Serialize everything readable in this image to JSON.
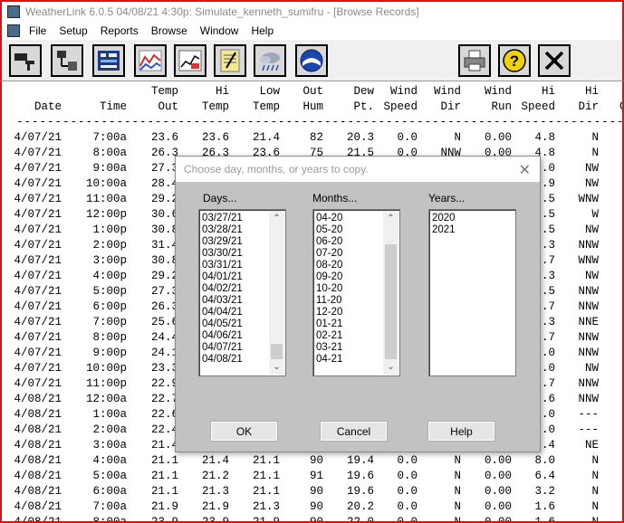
{
  "window": {
    "title": "WeatherLink 6.0.5  04/08/21  4:30p: Simulate_kenneth_sumifru - [Browse Records]"
  },
  "menu": [
    "File",
    "Setup",
    "Reports",
    "Browse",
    "Window",
    "Help"
  ],
  "toolbar_icons": [
    "import-icon",
    "connect-icon",
    "bulletin-icon",
    "strip-chart-icon",
    "graph-icon",
    "notes-icon",
    "weather-icon",
    "noaa-icon",
    "print-icon",
    "help-icon",
    "close-icon"
  ],
  "grid": {
    "headers": [
      {
        "line1": "",
        "line2": "Date"
      },
      {
        "line1": "",
        "line2": "Time"
      },
      {
        "line1": "Temp",
        "line2": "Out"
      },
      {
        "line1": "Hi",
        "line2": "Temp"
      },
      {
        "line1": "Low",
        "line2": "Temp"
      },
      {
        "line1": "Out",
        "line2": "Hum"
      },
      {
        "line1": "Dew",
        "line2": "Pt."
      },
      {
        "line1": "Wind",
        "line2": "Speed"
      },
      {
        "line1": "Wind",
        "line2": "Dir"
      },
      {
        "line1": "Wind",
        "line2": "Run"
      },
      {
        "line1": "Hi",
        "line2": "Speed"
      },
      {
        "line1": "Hi",
        "line2": "Dir"
      },
      {
        "line1": "W",
        "line2": "Ch"
      }
    ],
    "dashes": "--------------------------------------------------------------------------------------------",
    "rows": [
      [
        "4/07/21",
        "7:00a",
        "23.6",
        "23.6",
        "21.4",
        "82",
        "20.3",
        "0.0",
        "N",
        "0.00",
        "4.8",
        "N",
        "2"
      ],
      [
        "4/07/21",
        "8:00a",
        "26.3",
        "26.3",
        "23.6",
        "75",
        "21.5",
        "0.0",
        "NNW",
        "0.00",
        "4.8",
        "N",
        "2"
      ],
      [
        "4/07/21",
        "9:00a",
        "27.3",
        "",
        "",
        "",
        "",
        "",
        "",
        "",
        ".0",
        "NW",
        "2"
      ],
      [
        "4/07/21",
        "10:00a",
        "28.4",
        "",
        "",
        "",
        "",
        "",
        "",
        "",
        ".9",
        "NW",
        "2"
      ],
      [
        "4/07/21",
        "11:00a",
        "29.2",
        "",
        "",
        "",
        "",
        "",
        "",
        "",
        ".5",
        "WNW",
        "2"
      ],
      [
        "4/07/21",
        "12:00p",
        "30.6",
        "",
        "",
        "",
        "",
        "",
        "",
        "",
        ".5",
        "W",
        "3"
      ],
      [
        "4/07/21",
        "1:00p",
        "30.8",
        "",
        "",
        "",
        "",
        "",
        "",
        "",
        ".5",
        "NW",
        "3"
      ],
      [
        "4/07/21",
        "2:00p",
        "31.4",
        "",
        "",
        "",
        "",
        "",
        "",
        "",
        ".3",
        "NNW",
        "3"
      ],
      [
        "4/07/21",
        "3:00p",
        "30.8",
        "",
        "",
        "",
        "",
        "",
        "",
        "",
        ".7",
        "WNW",
        "3"
      ],
      [
        "4/07/21",
        "4:00p",
        "29.2",
        "",
        "",
        "",
        "",
        "",
        "",
        "",
        ".3",
        "NW",
        "2"
      ],
      [
        "4/07/21",
        "5:00p",
        "27.3",
        "",
        "",
        "",
        "",
        "",
        "",
        "",
        ".5",
        "NNW",
        "2"
      ],
      [
        "4/07/21",
        "6:00p",
        "26.3",
        "",
        "",
        "",
        "",
        "",
        "",
        "",
        ".7",
        "NNW",
        "2"
      ],
      [
        "4/07/21",
        "7:00p",
        "25.6",
        "",
        "",
        "",
        "",
        "",
        "",
        "",
        ".3",
        "NNE",
        "2"
      ],
      [
        "4/07/21",
        "8:00p",
        "24.4",
        "",
        "",
        "",
        "",
        "",
        "",
        "",
        ".7",
        "NNW",
        "2"
      ],
      [
        "4/07/21",
        "9:00p",
        "24.1",
        "",
        "",
        "",
        "",
        "",
        "",
        "",
        ".0",
        "NNW",
        "2"
      ],
      [
        "4/07/21",
        "10:00p",
        "23.3",
        "",
        "",
        "",
        "",
        "",
        "",
        "",
        ".0",
        "NW",
        "2"
      ],
      [
        "4/07/21",
        "11:00p",
        "22.9",
        "",
        "",
        "",
        "",
        "",
        "",
        "",
        ".7",
        "NNW",
        "2"
      ],
      [
        "4/08/21",
        "12:00a",
        "22.7",
        "",
        "",
        "",
        "",
        "",
        "",
        "",
        ".6",
        "NNW",
        "2"
      ],
      [
        "4/08/21",
        "1:00a",
        "22.6",
        "",
        "",
        "",
        "",
        "",
        "",
        "",
        ".0",
        "---",
        "2"
      ],
      [
        "4/08/21",
        "2:00a",
        "22.4",
        "",
        "",
        "",
        "",
        "",
        "",
        "",
        ".0",
        "---",
        "2"
      ],
      [
        "4/08/21",
        "3:00a",
        "21.4",
        "",
        "",
        "",
        "",
        "",
        "",
        "",
        ".4",
        "NE",
        "2"
      ],
      [
        "4/08/21",
        "4:00a",
        "21.1",
        "21.4",
        "21.1",
        "90",
        "19.4",
        "0.0",
        "N",
        "0.00",
        "8.0",
        "N",
        "2"
      ],
      [
        "4/08/21",
        "5:00a",
        "21.1",
        "21.2",
        "21.1",
        "91",
        "19.6",
        "0.0",
        "N",
        "0.00",
        "6.4",
        "N",
        "2"
      ],
      [
        "4/08/21",
        "6:00a",
        "21.1",
        "21.3",
        "21.1",
        "90",
        "19.6",
        "0.0",
        "N",
        "0.00",
        "3.2",
        "N",
        "2"
      ],
      [
        "4/08/21",
        "7:00a",
        "21.9",
        "21.9",
        "21.3",
        "90",
        "20.2",
        "0.0",
        "N",
        "0.00",
        "1.6",
        "N",
        "2"
      ],
      [
        "4/08/21",
        "8:00a",
        "23.9",
        "23.9",
        "21.9",
        "90",
        "22.0",
        "0.0",
        "N",
        "0.00",
        "1.6",
        "N",
        "2"
      ]
    ]
  },
  "dialog": {
    "title": "Choose day, months, or years to copy.",
    "close": "✕",
    "days_label": "Days...",
    "months_label": "Months...",
    "years_label": "Years...",
    "days": [
      "03/27/21",
      "03/28/21",
      "03/29/21",
      "03/30/21",
      "03/31/21",
      "04/01/21",
      "04/02/21",
      "04/03/21",
      "04/04/21",
      "04/05/21",
      "04/06/21",
      "04/07/21",
      "04/08/21"
    ],
    "months": [
      "04-20",
      "05-20",
      "06-20",
      "07-20",
      "08-20",
      "09-20",
      "10-20",
      "11-20",
      "12-20",
      "01-21",
      "02-21",
      "03-21",
      "04-21"
    ],
    "years": [
      "2020",
      "2021"
    ],
    "ok_label": "OK",
    "cancel_label": "Cancel",
    "help_label": "Help"
  }
}
